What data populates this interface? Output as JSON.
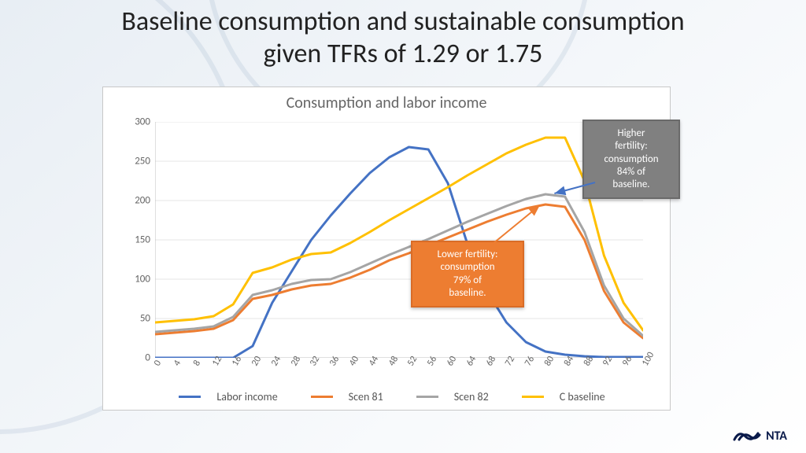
{
  "slide_title_line1": "Baseline consumption and sustainable consumption",
  "slide_title_line2": "given TFRs of 1.29 or 1.75",
  "chart": {
    "type": "line",
    "title": "Consumption and labor income",
    "title_fontsize": 20,
    "title_color": "#666666",
    "background": "#ffffff",
    "border_color": "#c8c8c8",
    "grid_color": "#e6e6e6",
    "axis_color": "#bfbfbf",
    "tick_color": "#666666",
    "tick_fontsize": 13,
    "xtick_fontsize": 12,
    "xtick_rotation_deg": -60,
    "xlim": [
      0,
      100
    ],
    "ylim": [
      0,
      300
    ],
    "xtick_step": 4,
    "ytick_step": 50,
    "line_width": 3,
    "x": [
      0,
      4,
      8,
      12,
      16,
      20,
      24,
      28,
      32,
      36,
      40,
      44,
      48,
      52,
      56,
      60,
      64,
      68,
      72,
      76,
      80,
      84,
      88,
      92,
      96,
      100
    ],
    "series": [
      {
        "name": "Labor income",
        "color": "#4472c4",
        "y": [
          0,
          0,
          0,
          0,
          0,
          15,
          70,
          110,
          150,
          181,
          209,
          235,
          255,
          268,
          265,
          222,
          145,
          85,
          45,
          20,
          8,
          4,
          2,
          1,
          1,
          1
        ]
      },
      {
        "name": "Scen 81",
        "color": "#ed7d31",
        "y": [
          30,
          32,
          34,
          37,
          48,
          75,
          80,
          87,
          92,
          94,
          102,
          112,
          124,
          133,
          143,
          153,
          163,
          173,
          182,
          190,
          195,
          192,
          150,
          85,
          45,
          25
        ]
      },
      {
        "name": "Scen 82",
        "color": "#a5a5a5",
        "y": [
          33,
          35,
          37,
          40,
          52,
          80,
          86,
          94,
          99,
          100,
          109,
          120,
          131,
          141,
          151,
          162,
          173,
          183,
          193,
          202,
          208,
          205,
          160,
          92,
          50,
          28
        ]
      },
      {
        "name": "C baseline",
        "color": "#ffc000",
        "y": [
          45,
          47,
          49,
          53,
          68,
          108,
          115,
          125,
          132,
          134,
          146,
          160,
          175,
          189,
          203,
          217,
          232,
          246,
          260,
          271,
          280,
          280,
          225,
          130,
          70,
          35
        ]
      }
    ],
    "legend_fontsize": 14,
    "legend_color": "#555555"
  },
  "callouts": {
    "higher": {
      "text_lines": [
        "Higher",
        "fertility:",
        "consumption",
        "84% of",
        "baseline."
      ],
      "fill": "#808080",
      "border": "#6a6a6a",
      "arrow_color": "#4472c4"
    },
    "lower": {
      "text_lines": [
        "Lower fertility:",
        "consumption",
        "79% of",
        "baseline."
      ],
      "fill": "#ed7d31",
      "border": "#d96c27",
      "arrow_color": "#ed7d31"
    }
  },
  "logo_text": "NTA",
  "logo_color": "#0a1a4a"
}
